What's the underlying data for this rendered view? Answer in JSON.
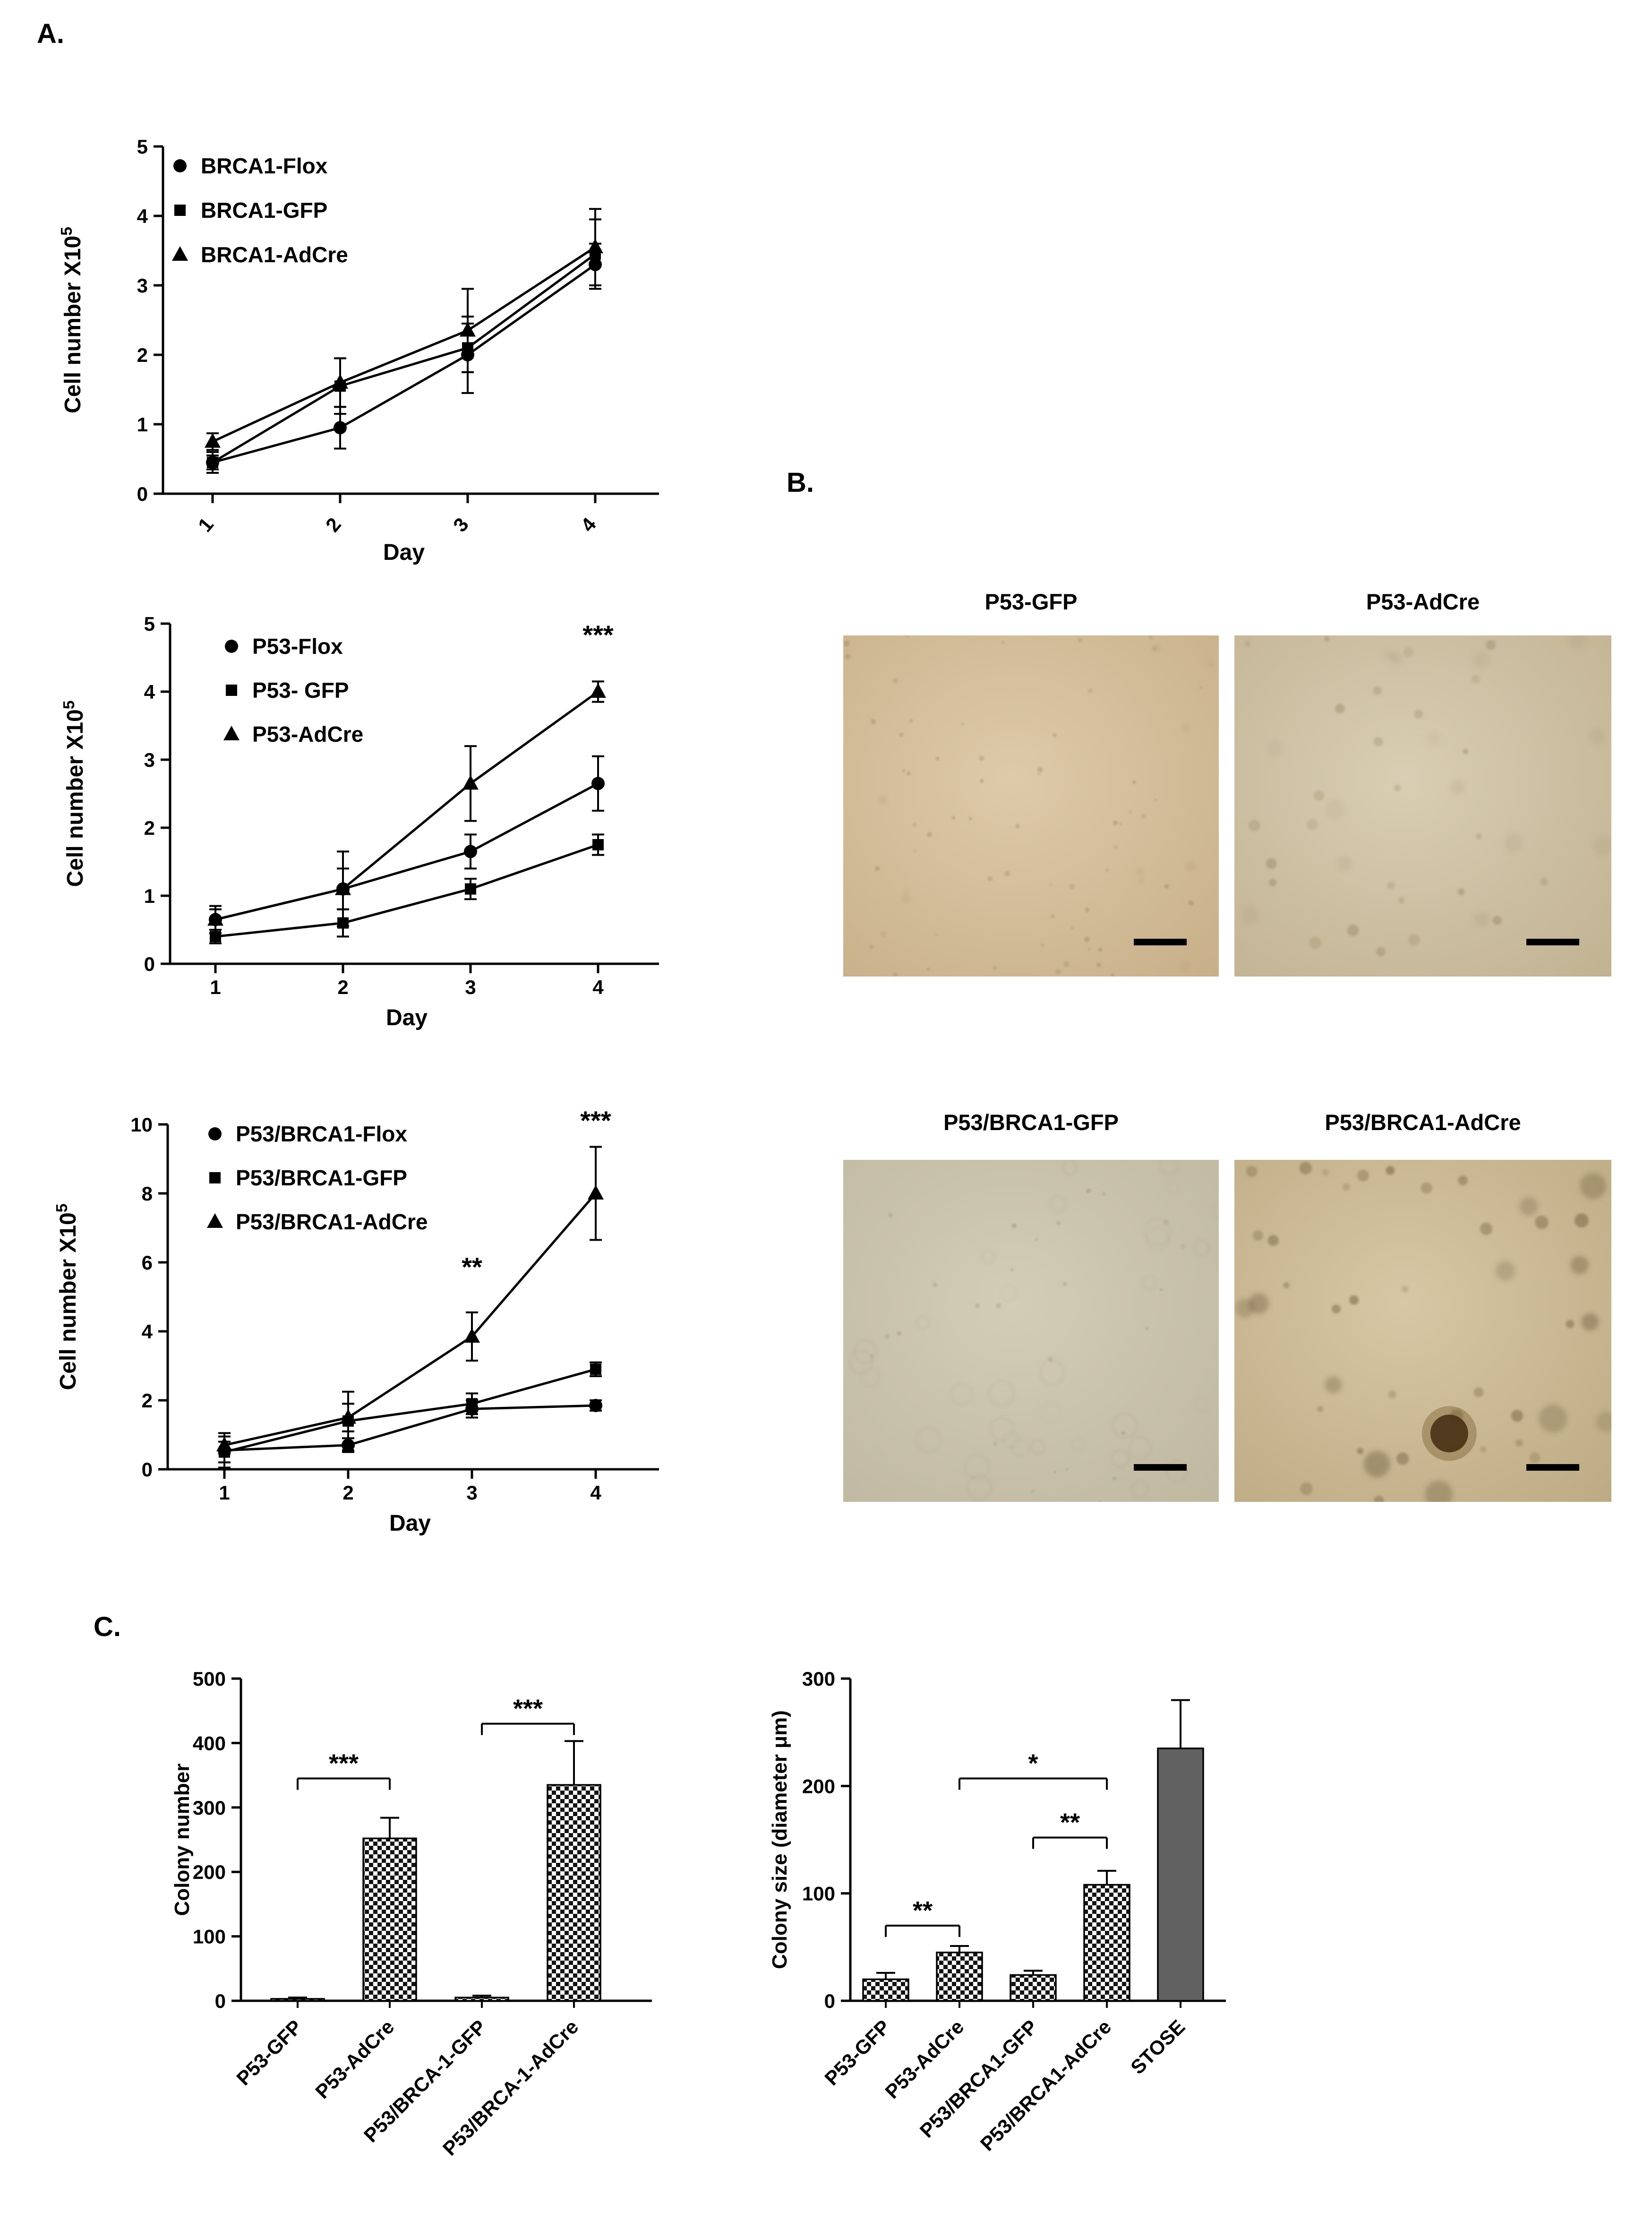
{
  "panels": {
    "a": {
      "label": "A."
    },
    "b": {
      "label": "B."
    },
    "c": {
      "label": "C."
    }
  },
  "micrographs": [
    {
      "label": "P53-GFP"
    },
    {
      "label": "P53-AdCre"
    },
    {
      "label": "P53/BRCA1-GFP"
    },
    {
      "label": "P53/BRCA1-AdCre"
    }
  ],
  "chart_data": [
    {
      "id": "brca1_growth",
      "type": "line",
      "xlabel": "Day",
      "ylabel": "Cell number X10^5",
      "x": [
        1,
        2,
        3,
        4
      ],
      "ylim": [
        0,
        5
      ],
      "yticks": [
        0,
        1,
        2,
        3,
        4,
        5
      ],
      "legend_position": "top-left-inside",
      "series": [
        {
          "name": "BRCA1-Flox",
          "marker": "circle",
          "values": [
            0.45,
            0.95,
            2.0,
            3.3
          ],
          "errors": [
            0.15,
            0.3,
            0.55,
            0.3
          ]
        },
        {
          "name": "BRCA1-GFP",
          "marker": "square",
          "values": [
            0.45,
            1.55,
            2.1,
            3.45
          ],
          "errors": [
            0.1,
            0.4,
            0.35,
            0.5
          ]
        },
        {
          "name": "BRCA1-AdCre",
          "marker": "triangle",
          "values": [
            0.75,
            1.6,
            2.35,
            3.55
          ],
          "errors": [
            0.12,
            0.35,
            0.6,
            0.55
          ]
        }
      ],
      "annotations": []
    },
    {
      "id": "p53_growth",
      "type": "line",
      "xlabel": "Day",
      "ylabel": "Cell number X10^5",
      "x": [
        1,
        2,
        3,
        4
      ],
      "ylim": [
        0,
        5
      ],
      "yticks": [
        0,
        1,
        2,
        3,
        4,
        5
      ],
      "legend_position": "top-left-inside",
      "series": [
        {
          "name": "P53-Flox",
          "marker": "circle",
          "values": [
            0.65,
            1.1,
            1.65,
            2.65
          ],
          "errors": [
            0.2,
            0.55,
            0.25,
            0.4
          ]
        },
        {
          "name": "P53- GFP",
          "marker": "square",
          "values": [
            0.4,
            0.6,
            1.1,
            1.75
          ],
          "errors": [
            0.1,
            0.2,
            0.15,
            0.15
          ]
        },
        {
          "name": "P53-AdCre",
          "marker": "triangle",
          "values": [
            0.65,
            1.1,
            2.65,
            4.0
          ],
          "errors": [
            0.15,
            0.3,
            0.55,
            0.15
          ]
        }
      ],
      "annotations": [
        {
          "x": 4,
          "y": 4.7,
          "text": "***"
        }
      ]
    },
    {
      "id": "p53_brca1_growth",
      "type": "line",
      "xlabel": "Day",
      "ylabel": "Cell number X10^5",
      "x": [
        1,
        2,
        3,
        4
      ],
      "ylim": [
        0,
        10
      ],
      "yticks": [
        0,
        2,
        4,
        6,
        8,
        10
      ],
      "legend_position": "top-left-inside",
      "series": [
        {
          "name": "P53/BRCA1-Flox",
          "marker": "circle",
          "values": [
            0.55,
            0.7,
            1.75,
            1.85
          ],
          "errors": [
            0.5,
            0.2,
            0.25,
            0.15
          ]
        },
        {
          "name": "P53/BRCA1-GFP",
          "marker": "square",
          "values": [
            0.5,
            1.4,
            1.9,
            2.9
          ],
          "errors": [
            0.3,
            0.85,
            0.3,
            0.2
          ]
        },
        {
          "name": "P53/BRCA1-AdCre",
          "marker": "triangle",
          "values": [
            0.7,
            1.5,
            3.85,
            8.0
          ],
          "errors": [
            0.25,
            0.4,
            0.7,
            1.35
          ]
        }
      ],
      "annotations": [
        {
          "x": 3,
          "y": 5.6,
          "text": "**"
        },
        {
          "x": 4,
          "y": 9.85,
          "text": "***"
        }
      ]
    },
    {
      "id": "colony_number",
      "type": "bar",
      "ylabel": "Colony number",
      "ylim": [
        0,
        500
      ],
      "yticks": [
        0,
        100,
        200,
        300,
        400,
        500
      ],
      "categories": [
        "P53-GFP",
        "P53-AdCre",
        "P53/BRCA-1-GFP",
        "P53/BRCA-1-AdCre"
      ],
      "values": [
        3,
        252,
        5,
        335
      ],
      "errors": [
        2,
        32,
        3,
        68
      ],
      "bar_styles": [
        "checker",
        "checker",
        "checker",
        "checker"
      ],
      "brackets": [
        {
          "from": 0,
          "to": 1,
          "y": 345,
          "text": "***"
        },
        {
          "from": 2,
          "to": 3,
          "y": 430,
          "text": "***"
        }
      ]
    },
    {
      "id": "colony_size",
      "type": "bar",
      "ylabel": "Colony size (diameter μm)",
      "ylim": [
        0,
        300
      ],
      "yticks": [
        0,
        100,
        200,
        300
      ],
      "categories": [
        "P53-GFP",
        "P53-AdCre",
        "P53/BRCA1-GFP",
        "P53/BRCA1-AdCre",
        "STOSE"
      ],
      "values": [
        20,
        45,
        24,
        108,
        235
      ],
      "errors": [
        6,
        6,
        4,
        13,
        45
      ],
      "bar_styles": [
        "checker",
        "checker",
        "checker",
        "checker",
        "solid"
      ],
      "solid_color": "#616161",
      "brackets": [
        {
          "from": 0,
          "to": 1,
          "y": 70,
          "text": "**"
        },
        {
          "from": 2,
          "to": 3,
          "y": 152,
          "text": "**"
        },
        {
          "from": 1,
          "to": 3,
          "y": 207,
          "text": "*"
        }
      ]
    }
  ]
}
